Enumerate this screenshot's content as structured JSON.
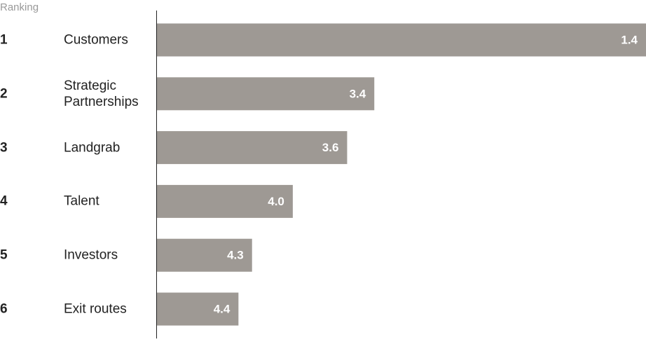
{
  "chart_data": {
    "type": "bar",
    "orientation": "horizontal",
    "header": "Ranking",
    "ranks": [
      "1",
      "2",
      "3",
      "4",
      "5",
      "6"
    ],
    "categories": [
      "Customers",
      "Strategic Partnerships",
      "Landgrab",
      "Talent",
      "Investors",
      "Exit routes"
    ],
    "values": [
      1.4,
      3.4,
      3.6,
      4.0,
      4.3,
      4.4
    ],
    "value_labels": [
      "1.4",
      "3.4",
      "3.6",
      "4.0",
      "4.3",
      "4.4"
    ],
    "color": "#9e9994",
    "xlim": [
      5,
      1.4
    ]
  }
}
